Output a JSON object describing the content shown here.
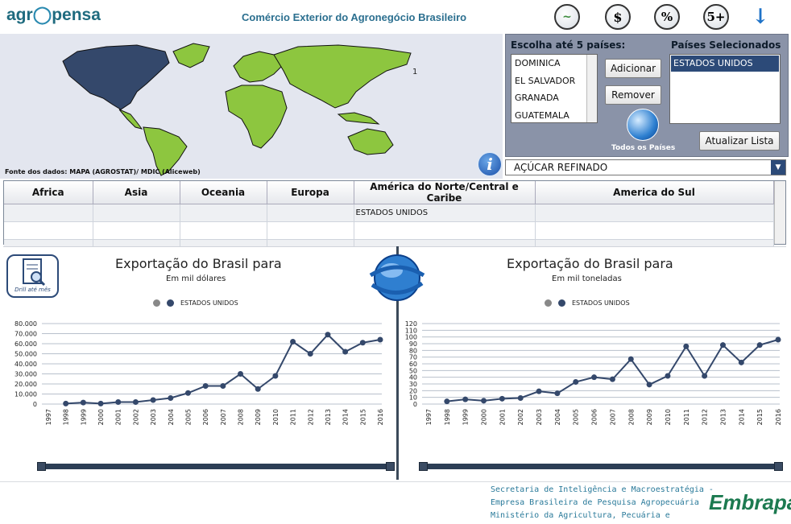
{
  "header": {
    "logo_pre": "agr",
    "logo_post": "pensa",
    "title": "Comércio Exterior do Agronegócio Brasileiro",
    "icons": [
      {
        "name": "chart-icon",
        "glyph": "~"
      },
      {
        "name": "money-icon",
        "glyph": "$"
      },
      {
        "name": "percent-icon",
        "glyph": "%"
      },
      {
        "name": "top5-icon",
        "glyph": "5+"
      },
      {
        "name": "download-arrow-icon",
        "glyph": "↓"
      }
    ]
  },
  "map": {
    "source": "Fonte dos dados: MAPA (AGROSTAT)/ MDIC (Aliceweb)",
    "marker": "1"
  },
  "panel": {
    "choose_label": "Escolha até 5 países:",
    "selected_label": "Países Selecionados",
    "countries": [
      "DOMINICA",
      "EL SALVADOR",
      "GRANADA",
      "GUATEMALA"
    ],
    "selected": [
      "ESTADOS UNIDOS"
    ],
    "add_label": "Adicionar",
    "remove_label": "Remover",
    "all_countries_label": "Todos os Países",
    "refresh_label": "Atualizar Lista"
  },
  "product": {
    "value": "AÇÚCAR REFINADO"
  },
  "grid": {
    "columns": [
      "Africa",
      "Asia",
      "Oceania",
      "Europa",
      "América do Norte/Central e Caribe",
      "America do Sul"
    ],
    "rows": [
      [
        "",
        "",
        "",
        "",
        "ESTADOS UNIDOS",
        ""
      ],
      [
        "",
        "",
        "",
        "",
        "",
        ""
      ],
      [
        "",
        "",
        "",
        "",
        "",
        ""
      ]
    ]
  },
  "drill": {
    "label": "Drill até mês"
  },
  "colors": {
    "accent": "#2c4a78",
    "land": "#8dc63f",
    "selected_land": "#34486b",
    "line": "#34486b"
  },
  "chart_data": [
    {
      "type": "line",
      "title": "Exportação do Brasil para",
      "subtitle": "Em mil dólares",
      "legend": [
        "",
        "ESTADOS UNIDOS"
      ],
      "x": [
        "1997",
        "1998",
        "1999",
        "2000",
        "2001",
        "2002",
        "2003",
        "2004",
        "2005",
        "2006",
        "2007",
        "2008",
        "2009",
        "2010",
        "2011",
        "2012",
        "2013",
        "2014",
        "2015",
        "2016"
      ],
      "series": [
        {
          "name": "ESTADOS UNIDOS",
          "values": [
            null,
            500,
            1500,
            500,
            2000,
            2000,
            4000,
            6000,
            11000,
            18000,
            18000,
            30000,
            15000,
            28000,
            62000,
            50000,
            69000,
            52000,
            61000,
            64000
          ]
        }
      ],
      "yticks": [
        "0",
        "10.000",
        "20.000",
        "30.000",
        "40.000",
        "50.000",
        "60.000",
        "70.000",
        "80.000"
      ],
      "ylim": [
        0,
        80000
      ]
    },
    {
      "type": "line",
      "title": "Exportação do Brasil para",
      "subtitle": "Em mil toneladas",
      "legend": [
        "",
        "ESTADOS UNIDOS"
      ],
      "x": [
        "1997",
        "1998",
        "1999",
        "2000",
        "2001",
        "2002",
        "2003",
        "2004",
        "2005",
        "2006",
        "2007",
        "2008",
        "2009",
        "2010",
        "2011",
        "2012",
        "2013",
        "2014",
        "2015",
        "2016"
      ],
      "series": [
        {
          "name": "ESTADOS UNIDOS",
          "values": [
            null,
            4,
            7,
            5,
            8,
            9,
            19,
            16,
            33,
            40,
            37,
            67,
            29,
            42,
            86,
            42,
            88,
            62,
            88,
            96
          ]
        }
      ],
      "yticks": [
        "0",
        "10",
        "20",
        "30",
        "40",
        "50",
        "60",
        "70",
        "80",
        "90",
        "100",
        "110",
        "120"
      ],
      "ylim": [
        0,
        120
      ]
    }
  ],
  "footer": {
    "lines": [
      "Secretaria de Inteligência e Macroestratégia -",
      "Empresa Brasileira de Pesquisa Agropecuária",
      "Ministério da Agricultura, Pecuária e"
    ],
    "brand": "Embrapa"
  }
}
